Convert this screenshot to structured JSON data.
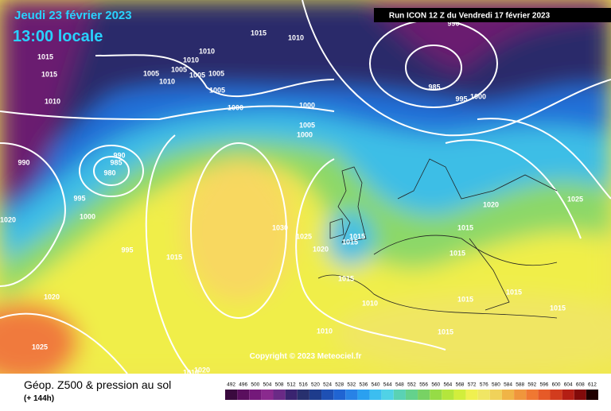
{
  "header": {
    "valid_date": "Jeudi 23 février 2023",
    "local_time": "13:00 locale",
    "run_info": "Run ICON 12 Z du Vendredi 17 février 2023"
  },
  "map": {
    "copyright": "Copyright © 2023 Meteociel.fr",
    "isobar_labels": [
      1015,
      1010,
      1015,
      1015,
      1010,
      1010,
      1005,
      1005,
      1010,
      1005,
      1005,
      1005,
      1010,
      1000,
      1000,
      1005,
      1000,
      985,
      995,
      1000,
      990,
      985,
      980,
      990,
      995,
      1000,
      1020,
      995,
      1015,
      1030,
      1025,
      1020,
      1015,
      1015,
      1015,
      1010,
      1020,
      1025,
      1015,
      1015,
      1015,
      1015,
      1015,
      1015,
      1020,
      1025,
      1010,
      1020,
      1010,
      990
    ]
  },
  "footer": {
    "product": "Géop. Z500 & pression au sol",
    "lead": "(+ 144h)"
  },
  "colorbar": {
    "labels": [
      492,
      496,
      500,
      504,
      508,
      512,
      516,
      520,
      524,
      528,
      532,
      536,
      540,
      544,
      548,
      552,
      556,
      560,
      564,
      568,
      572,
      576,
      580,
      584,
      588,
      592,
      596,
      600,
      604,
      608,
      612
    ],
    "colors": [
      "#3a0a3e",
      "#5a0f5e",
      "#74197a",
      "#8a2a8e",
      "#6a2a86",
      "#3a2470",
      "#28306e",
      "#1e3c8c",
      "#1e50b4",
      "#2064d2",
      "#2882e6",
      "#2aa0f0",
      "#3cbef0",
      "#50d2e6",
      "#5ad2b4",
      "#64d28c",
      "#78d264",
      "#96dc46",
      "#b4e63c",
      "#d2ee3c",
      "#f0f050",
      "#f0e664",
      "#f0d25a",
      "#f0b446",
      "#f0963c",
      "#f07832",
      "#e65a28",
      "#d23c1e",
      "#b41e14",
      "#820a0a",
      "#200000"
    ]
  }
}
